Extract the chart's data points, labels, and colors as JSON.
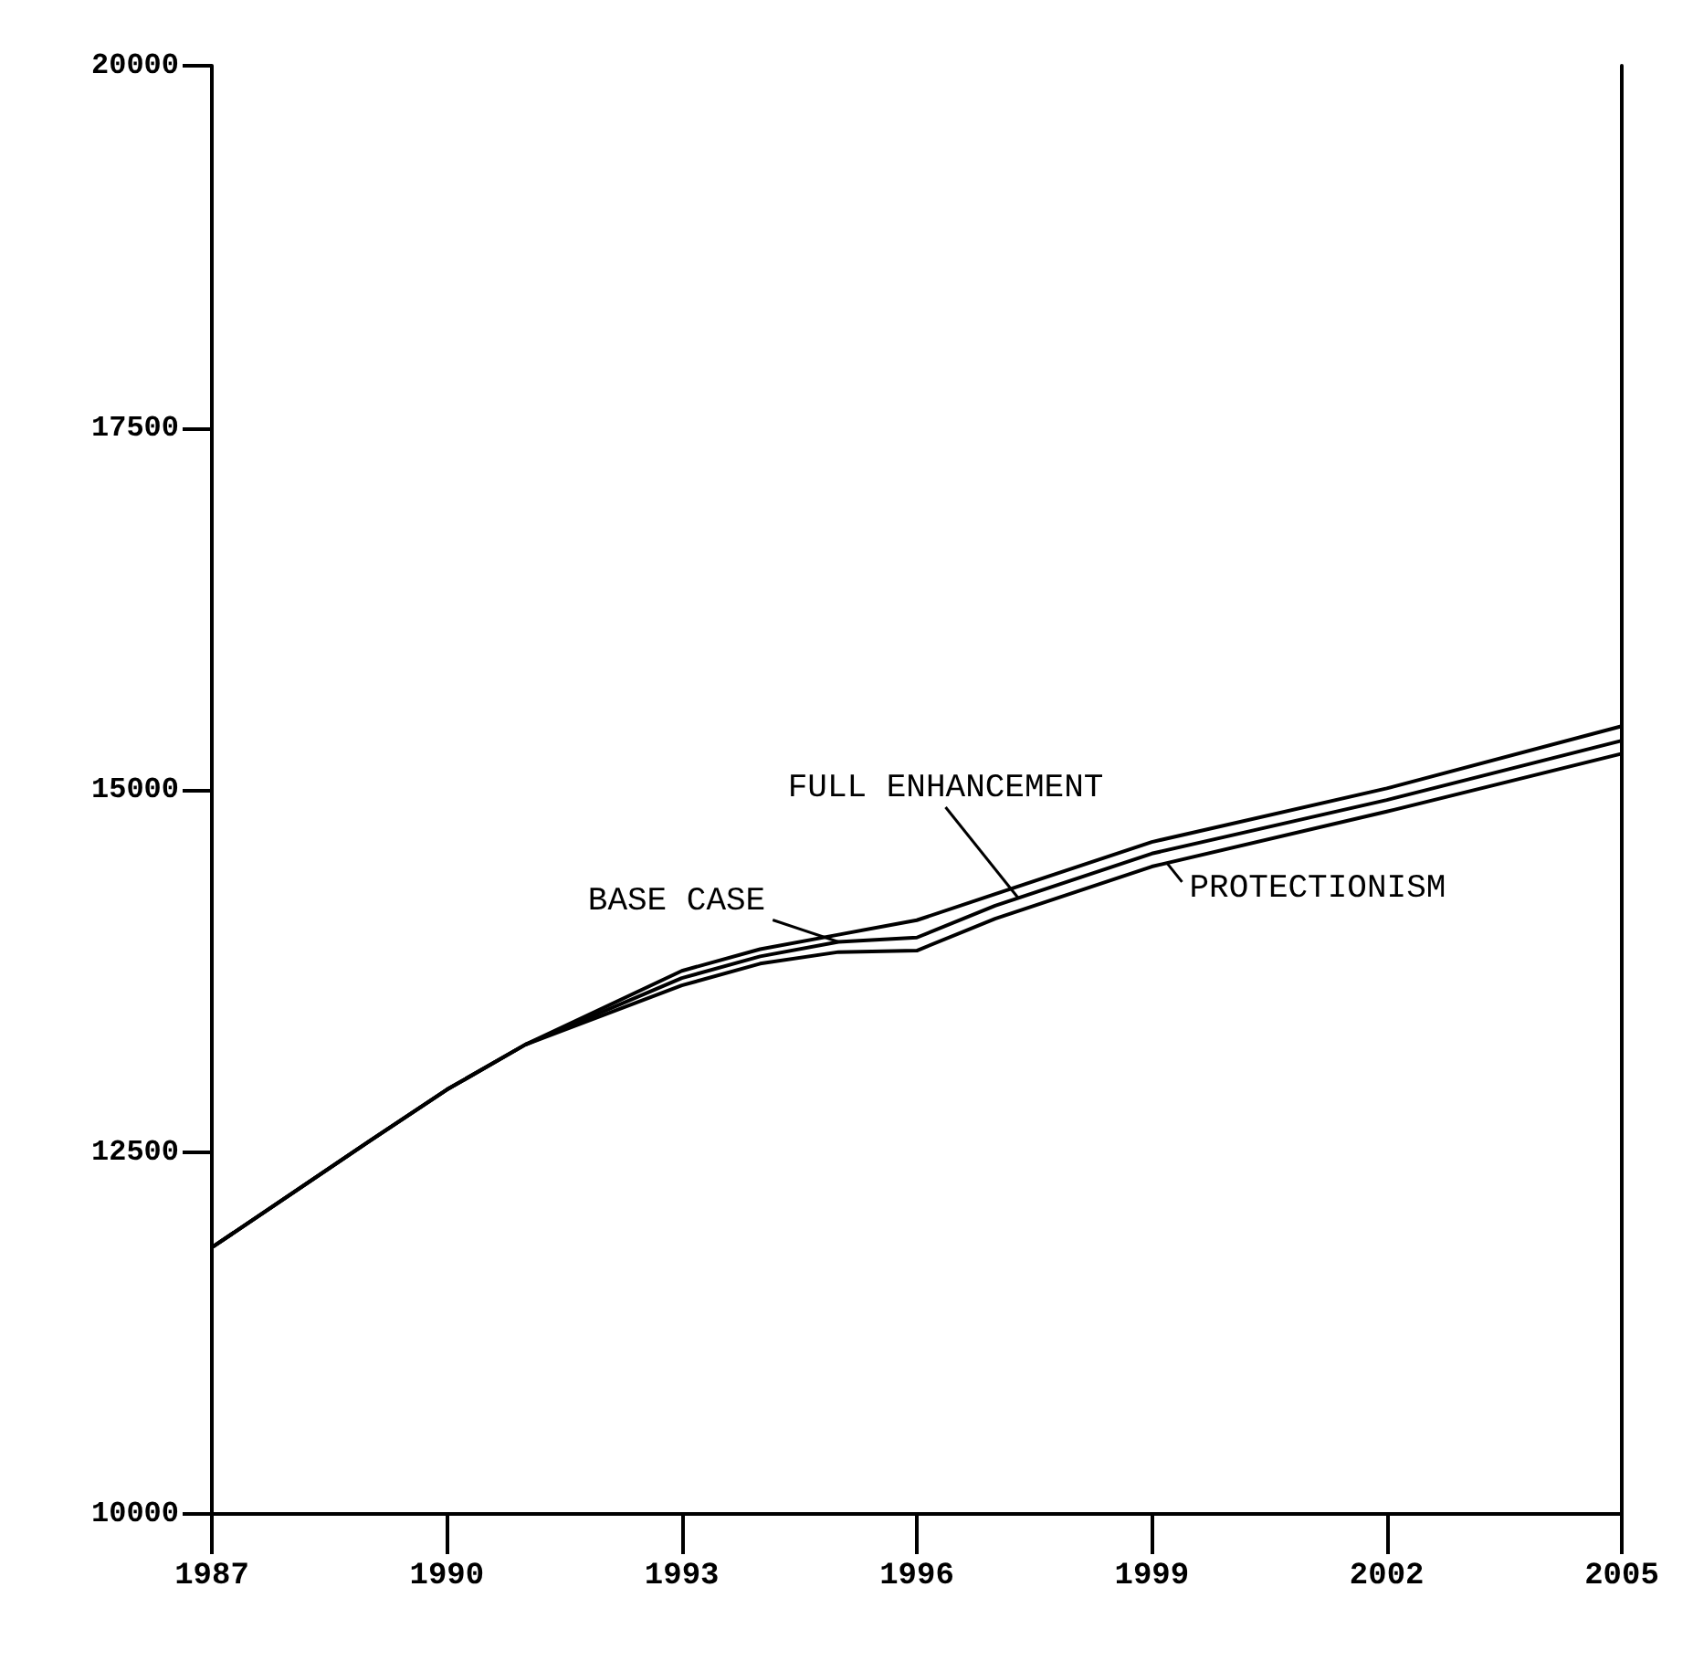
{
  "chart_data": {
    "type": "line",
    "x": [
      1987,
      1989,
      1990,
      1991,
      1993,
      1994,
      1995,
      1996,
      1997,
      1999,
      2002,
      2005
    ],
    "series": [
      {
        "color": "#000000",
        "values": [
          11840,
          12570,
          12930,
          13240,
          13750,
          13900,
          14000,
          14100,
          14280,
          14640,
          15010,
          15440
        ]
      },
      {
        "color": "#000000",
        "values": [
          11840,
          12570,
          12930,
          13240,
          13700,
          13850,
          13950,
          13980,
          14200,
          14560,
          14930,
          15340
        ]
      },
      {
        "color": "#000000",
        "values": [
          11840,
          12570,
          12930,
          13240,
          13650,
          13800,
          13880,
          13890,
          14110,
          14470,
          14850,
          15250
        ]
      }
    ],
    "xlim": [
      1987,
      2005
    ],
    "xticks": [
      1987,
      1990,
      1993,
      1996,
      1999,
      2002,
      2005
    ],
    "ylim": [
      10000,
      20000
    ],
    "yticks": [
      10000,
      12500,
      15000,
      17500,
      20000
    ],
    "marker": "none",
    "line_style": "solid",
    "annotations": [
      {
        "text": "FULL ENHANCEMENT",
        "x": 1997.3,
        "y": 14250
      },
      {
        "text": "BASE CASE",
        "x": 1995,
        "y": 13950
      },
      {
        "text": "PROTECTIONISM",
        "x": 1999.2,
        "y": 14490
      }
    ]
  }
}
